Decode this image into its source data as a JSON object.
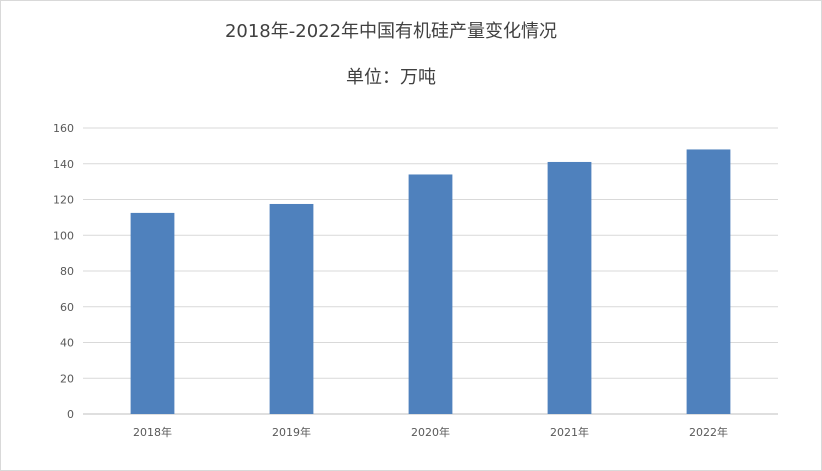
{
  "chart_data": {
    "type": "bar",
    "title": "2018年-2022年中国有机硅产量变化情况",
    "subtitle": "单位：万吨",
    "categories": [
      "2018年",
      "2019年",
      "2020年",
      "2021年",
      "2022年"
    ],
    "values": [
      112.5,
      117.5,
      134,
      141,
      148
    ],
    "ylim": [
      0,
      160
    ],
    "yticks": [
      0,
      20,
      40,
      60,
      80,
      100,
      120,
      140,
      160
    ],
    "grid": true,
    "legend": "none",
    "colors": {
      "bar": "#4f81bd",
      "grid": "#d9d9d9",
      "axis": "#bfbfbf",
      "text": "#595959"
    }
  }
}
